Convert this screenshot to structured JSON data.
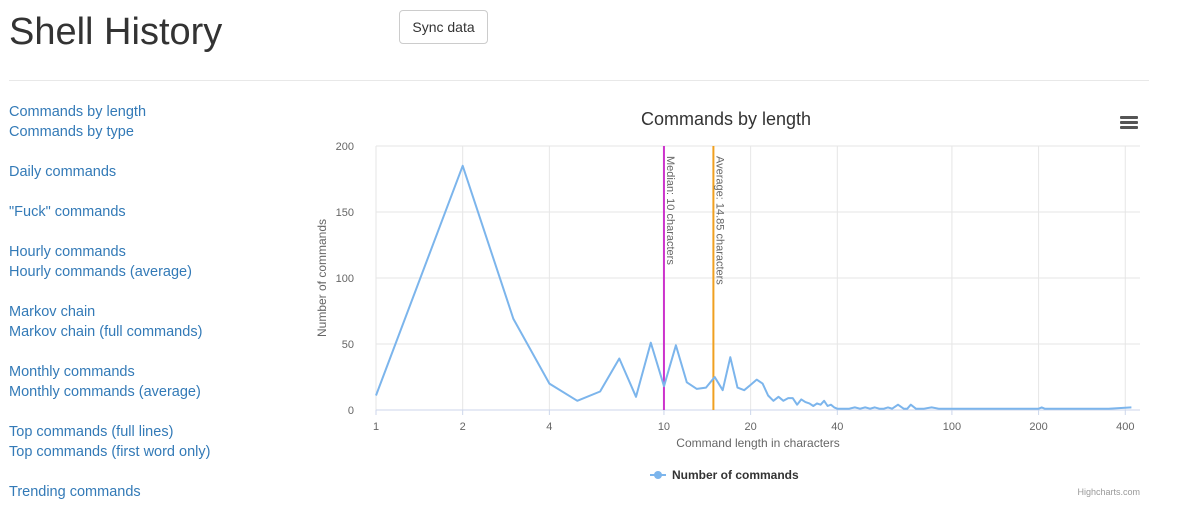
{
  "header": {
    "title": "Shell History",
    "sync_label": "Sync data"
  },
  "sidebar": {
    "groups": [
      [
        "Commands by length",
        "Commands by type"
      ],
      [
        "Daily commands"
      ],
      [
        "\"Fuck\" commands"
      ],
      [
        "Hourly commands",
        "Hourly commands (average)"
      ],
      [
        "Markov chain",
        "Markov chain (full commands)"
      ],
      [
        "Monthly commands",
        "Monthly commands (average)"
      ],
      [
        "Top commands (full lines)",
        "Top commands (first word only)"
      ],
      [
        "Trending commands"
      ]
    ]
  },
  "chart": {
    "credits": "Highcharts.com"
  },
  "colors": {
    "series": "#7cb5ec",
    "median": "#cc33cc",
    "average": "#f0a020",
    "link": "#337ab7"
  },
  "chart_data": {
    "type": "line",
    "title": "Commands by length",
    "xlabel": "Command length in characters",
    "ylabel": "Number of commands",
    "x_scale": "log",
    "xlim": [
      1,
      450
    ],
    "ylim": [
      0,
      200
    ],
    "x_ticks": [
      1,
      2,
      4,
      10,
      20,
      40,
      100,
      200,
      400
    ],
    "y_ticks": [
      0,
      50,
      100,
      150,
      200
    ],
    "grid": true,
    "legend_position": "bottom-center",
    "plot_lines": [
      {
        "label": "Median: 10 characters",
        "value": 10,
        "color": "#cc33cc"
      },
      {
        "label": "Average: 14.85 characters",
        "value": 14.85,
        "color": "#f0a020"
      }
    ],
    "series": [
      {
        "name": "Number of commands",
        "x": [
          1,
          2,
          3,
          4,
          5,
          6,
          7,
          8,
          9,
          10,
          11,
          12,
          13,
          14,
          15,
          16,
          17,
          18,
          19,
          20,
          21,
          22,
          23,
          24,
          25,
          26,
          27,
          28,
          29,
          30,
          31,
          32,
          33,
          34,
          35,
          36,
          37,
          38,
          39,
          40,
          42,
          44,
          46,
          48,
          50,
          52,
          54,
          56,
          58,
          60,
          62,
          65,
          68,
          70,
          72,
          75,
          80,
          85,
          90,
          100,
          120,
          150,
          200,
          205,
          210,
          250,
          300,
          350,
          420
        ],
        "values": [
          11,
          185,
          69,
          20,
          7,
          14,
          39,
          10,
          51,
          18,
          49,
          21,
          16,
          17,
          25,
          15,
          40,
          17,
          15,
          19,
          23,
          20,
          11,
          7,
          10,
          7,
          9,
          9,
          4,
          8,
          6,
          5,
          3,
          5,
          4,
          7,
          3,
          4,
          2,
          1,
          1,
          1,
          2,
          1,
          2,
          1,
          2,
          1,
          1,
          2,
          1,
          4,
          1,
          1,
          4,
          1,
          1,
          2,
          1,
          1,
          1,
          1,
          1,
          2,
          1,
          1,
          1,
          1,
          2
        ]
      }
    ]
  }
}
